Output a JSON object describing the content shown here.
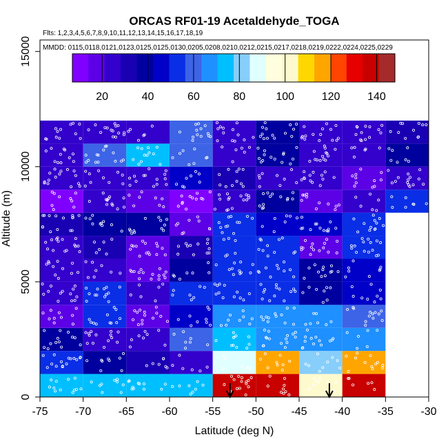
{
  "colors": {
    "palette": [
      "#7f00ff",
      "#5c00e6",
      "#3300cc",
      "#1a00b3",
      "#00009e",
      "#0000c8",
      "#0a2ee6",
      "#3d64e6",
      "#1e90ff",
      "#00bfff",
      "#87cefa",
      "#e0ffff",
      "#ffffe0",
      "#fffacd",
      "#ffd700",
      "#ffa500",
      "#ff4500",
      "#e60000",
      "#c80000",
      "#a52a2a"
    ],
    "frame": "#000000",
    "points": "#ffffff"
  },
  "chart_data": {
    "type": "heatmap",
    "title": "ORCAS RF01-19 Acetaldehyde_TOGA",
    "flights_line": "Flts: 1,2,3,4,5,6,7,8,9,10,11,12,13,14,15,16,17,18,19",
    "dates_line": "MMDD: 0115,0118,0121,0123,0125,0125,0130,0205,0208,0210,0212,0215,0217,0218,0219,0222,0224,0225,0229",
    "xlabel": "Latitude (deg N)",
    "ylabel": "Altitude (m)",
    "xlim": [
      -75,
      -30
    ],
    "ylim": [
      0,
      15500
    ],
    "x_ticks": [
      -75,
      -70,
      -65,
      -60,
      -55,
      -50,
      -45,
      -40,
      -35,
      -30
    ],
    "x_tick_labels": [
      "-75",
      "-70",
      "-65",
      "-60",
      "-55",
      "-50",
      "-45",
      "-40",
      "-35",
      "-30"
    ],
    "y_ticks": [
      0,
      5000,
      10000,
      15000
    ],
    "y_tick_labels": [
      "0",
      "5000",
      "10000",
      "15000"
    ],
    "colorbar": {
      "range": [
        7,
        148
      ],
      "ticks": [
        20,
        40,
        60,
        80,
        100,
        120,
        140
      ],
      "tick_labels": [
        "20",
        "40",
        "60",
        "80",
        "100",
        "120",
        "140"
      ]
    },
    "lat_bins": [
      -75,
      -70,
      -65,
      -60,
      -55,
      -50,
      -45,
      -40,
      -35,
      -30
    ],
    "alt_bins": [
      0,
      1000,
      2000,
      3000,
      4000,
      5000,
      6000,
      7000,
      8000,
      9000,
      10000,
      11000,
      12000
    ],
    "values": [
      [
        75,
        75,
        72,
        72,
        135,
        138,
        105,
        138,
        null
      ],
      [
        56,
        38,
        34,
        25,
        87,
        118,
        83,
        118,
        null
      ],
      [
        40,
        28,
        26,
        58,
        77,
        70,
        70,
        70,
        null
      ],
      [
        20,
        56,
        18,
        48,
        68,
        65,
        65,
        62,
        null
      ],
      [
        22,
        55,
        24,
        50,
        54,
        55,
        38,
        45,
        null
      ],
      [
        22,
        25,
        20,
        42,
        52,
        50,
        40,
        48,
        null
      ],
      [
        22,
        30,
        20,
        32,
        56,
        52,
        20,
        52,
        null
      ],
      [
        30,
        36,
        38,
        20,
        50,
        46,
        46,
        50,
        null
      ],
      [
        9,
        28,
        20,
        13,
        26,
        36,
        20,
        22,
        52
      ],
      [
        22,
        24,
        22,
        44,
        30,
        22,
        22,
        20,
        22
      ],
      [
        22,
        60,
        72,
        60,
        22,
        42,
        22,
        22,
        36
      ],
      [
        22,
        26,
        22,
        60,
        24,
        42,
        24,
        24,
        32
      ]
    ],
    "arrow_markers": [
      {
        "latitude": -53.0,
        "direction": "down"
      },
      {
        "latitude": -41.5,
        "direction": "down"
      }
    ]
  }
}
